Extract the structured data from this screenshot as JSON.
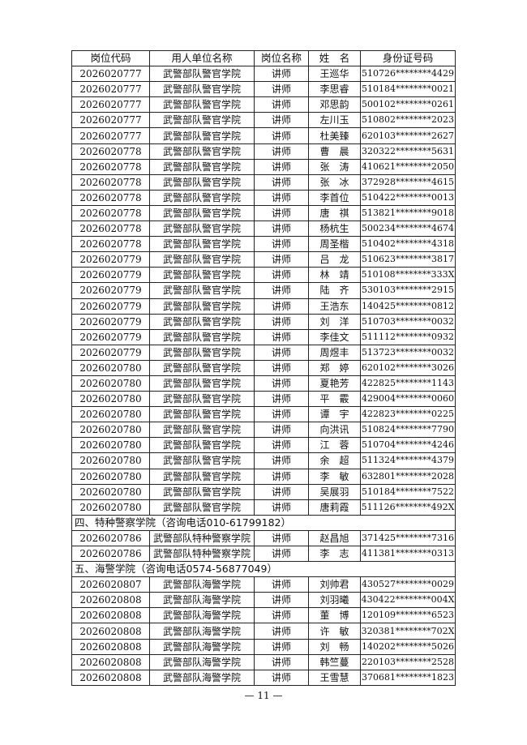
{
  "table": {
    "header": [
      "岗位代码",
      "用人单位名称",
      "岗位名称",
      "姓　名",
      "身份证号码"
    ],
    "rows": [
      [
        "2026020777",
        "武警部队警官学院",
        "讲师",
        "王巡华",
        "510726********4429"
      ],
      [
        "2026020777",
        "武警部队警官学院",
        "讲师",
        "李思睿",
        "510184********0021"
      ],
      [
        "2026020777",
        "武警部队警官学院",
        "讲师",
        "邓思韵",
        "500102********0261"
      ],
      [
        "2026020777",
        "武警部队警官学院",
        "讲师",
        "左川玉",
        "510802********2023"
      ],
      [
        "2026020777",
        "武警部队警官学院",
        "讲师",
        "杜美臻",
        "620103********2627"
      ],
      [
        "2026020778",
        "武警部队警官学院",
        "讲师",
        "曹　晨",
        "320322********5631"
      ],
      [
        "2026020778",
        "武警部队警官学院",
        "讲师",
        "张　涛",
        "410621********2050"
      ],
      [
        "2026020778",
        "武警部队警官学院",
        "讲师",
        "张　冰",
        "372928********4615"
      ],
      [
        "2026020778",
        "武警部队警官学院",
        "讲师",
        "李首位",
        "510422********0013"
      ],
      [
        "2026020778",
        "武警部队警官学院",
        "讲师",
        "唐　祺",
        "513821********9018"
      ],
      [
        "2026020778",
        "武警部队警官学院",
        "讲师",
        "杨杭生",
        "500234********4674"
      ],
      [
        "2026020778",
        "武警部队警官学院",
        "讲师",
        "周圣楷",
        "510402********4318"
      ],
      [
        "2026020779",
        "武警部队警官学院",
        "讲师",
        "吕　龙",
        "510623********3817"
      ],
      [
        "2026020779",
        "武警部队警官学院",
        "讲师",
        "林　靖",
        "510108********333X"
      ],
      [
        "2026020779",
        "武警部队警官学院",
        "讲师",
        "陆　齐",
        "530103********2915"
      ],
      [
        "2026020779",
        "武警部队警官学院",
        "讲师",
        "王浩东",
        "140425********0812"
      ],
      [
        "2026020779",
        "武警部队警官学院",
        "讲师",
        "刘　洋",
        "510703********0032"
      ],
      [
        "2026020779",
        "武警部队警官学院",
        "讲师",
        "李佳文",
        "511112********0932"
      ],
      [
        "2026020779",
        "武警部队警官学院",
        "讲师",
        "周煜丰",
        "513723********0032"
      ],
      [
        "2026020780",
        "武警部队警官学院",
        "讲师",
        "郑　婷",
        "620102********3026"
      ],
      [
        "2026020780",
        "武警部队警官学院",
        "讲师",
        "夏艳芳",
        "422825********1143"
      ],
      [
        "2026020780",
        "武警部队警官学院",
        "讲师",
        "平　霰",
        "429004********0060"
      ],
      [
        "2026020780",
        "武警部队警官学院",
        "讲师",
        "谭　宇",
        "422823********0225"
      ],
      [
        "2026020780",
        "武警部队警官学院",
        "讲师",
        "向洪讯",
        "510824********7790"
      ],
      [
        "2026020780",
        "武警部队警官学院",
        "讲师",
        "江　蓉",
        "510704********4246"
      ],
      [
        "2026020780",
        "武警部队警官学院",
        "讲师",
        "余　超",
        "511324********4379"
      ],
      [
        "2026020780",
        "武警部队警官学院",
        "讲师",
        "李　敏",
        "632801********2028"
      ],
      [
        "2026020780",
        "武警部队警官学院",
        "讲师",
        "吴展羽",
        "510184********7522"
      ],
      [
        "2026020780",
        "武警部队警官学院",
        "讲师",
        "唐莉霞",
        "511126********492X"
      ],
      [
        "四、特种警察学院（咨询电话010-61799182）"
      ],
      [
        "2026020786",
        "武警部队特种警察学院",
        "讲师",
        "赵昌旭",
        "371425********7316"
      ],
      [
        "2026020786",
        "武警部队特种警察学院",
        "讲师",
        "李　志",
        "411381********0313"
      ],
      [
        "五、海警学院（咨询电话0574-56877049）"
      ],
      [
        "2026020807",
        "武警部队海警学院",
        "讲师",
        "刘帅君",
        "430527********0029"
      ],
      [
        "2026020808",
        "武警部队海警学院",
        "讲师",
        "刘羽曦",
        "430422********004X"
      ],
      [
        "2026020808",
        "武警部队海警学院",
        "讲师",
        "董　博",
        "120109********6523"
      ],
      [
        "2026020808",
        "武警部队海警学院",
        "讲师",
        "许　敏",
        "320381********702X"
      ],
      [
        "2026020808",
        "武警部队海警学院",
        "讲师",
        "刘　畅",
        "140202********5026"
      ],
      [
        "2026020808",
        "武警部队海警学院",
        "讲师",
        "韩竺蔓",
        "220103********2528"
      ],
      [
        "2026020808",
        "武警部队海警学院",
        "讲师",
        "王雪慧",
        "370681********1823"
      ]
    ]
  },
  "footer": "— 11 —"
}
